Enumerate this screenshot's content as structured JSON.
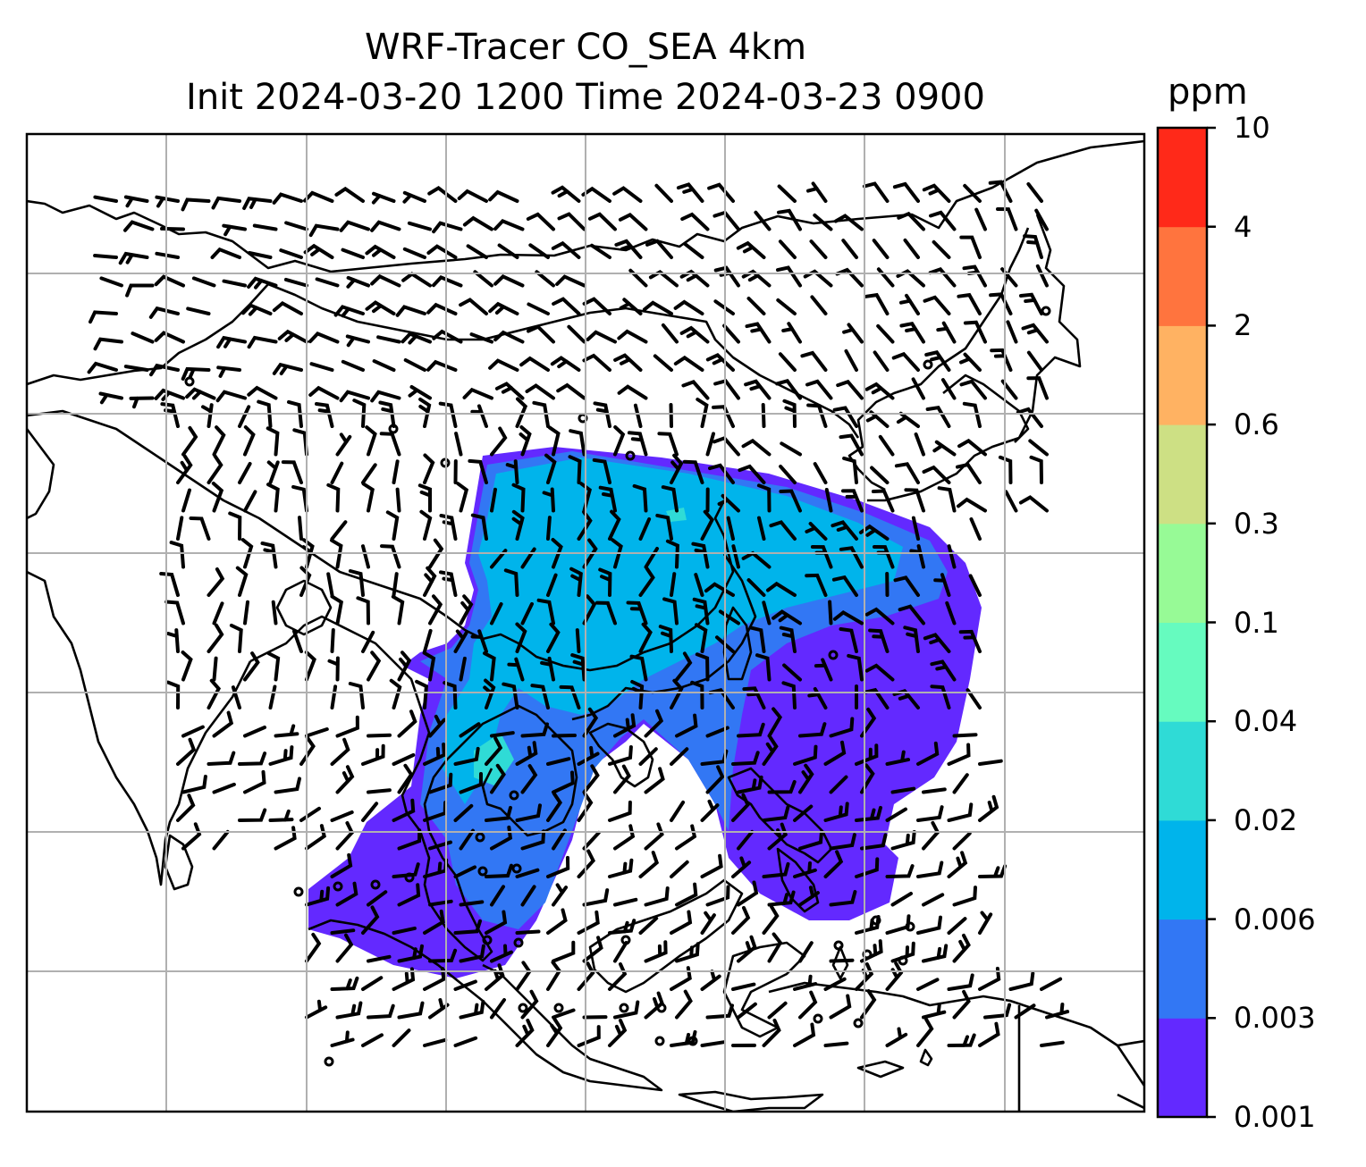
{
  "title": {
    "line1": "WRF-Tracer CO_SEA 4km",
    "line2": "Init 2024-03-20 1200 Time 2024-03-23 0900"
  },
  "colorbar": {
    "unit": "ppm",
    "levels": [
      "0.001",
      "0.003",
      "0.006",
      "0.02",
      "0.04",
      "0.1",
      "0.3",
      "0.6",
      "2",
      "4",
      "10"
    ],
    "colors": [
      "#6329ff",
      "#3277f4",
      "#00b4eb",
      "#2fdbd6",
      "#66fbbf",
      "#97fa96",
      "#cde084",
      "#ffb262",
      "#ff743e",
      "#ff2919"
    ]
  },
  "map": {
    "legend": "none",
    "grid": true,
    "content": "CO tracer concentration over Southeast Asia with wind barbs and coastlines"
  }
}
